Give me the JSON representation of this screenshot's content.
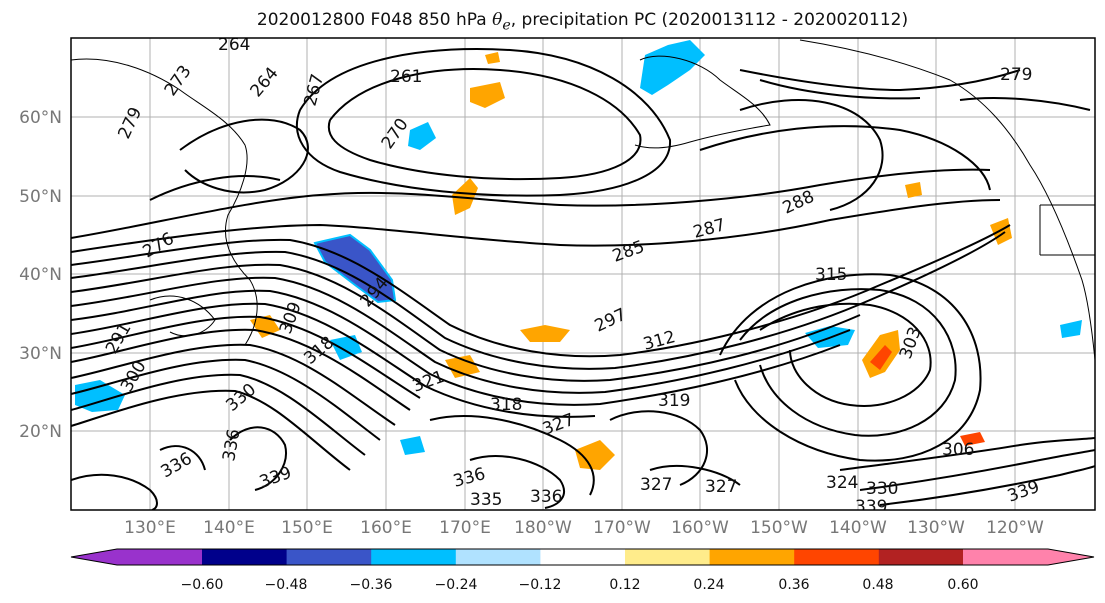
{
  "title": {
    "date": "2020012800",
    "forecast": "F048",
    "level": "850 hPa",
    "variable_symbol": "θ",
    "variable_subscript": "e",
    "rest": ", precipitation PC (2020013112 - 2020020112)"
  },
  "map": {
    "lon_labels": [
      "130°E",
      "140°E",
      "150°E",
      "160°E",
      "170°E",
      "180°W",
      "170°W",
      "160°W",
      "150°W",
      "140°W",
      "130°W",
      "120°W"
    ],
    "lat_labels": [
      "60°N",
      "50°N",
      "40°N",
      "30°N",
      "20°N"
    ],
    "contour_labels": [
      "264",
      "273",
      "279",
      "261",
      "267",
      "270",
      "264",
      "279",
      "276",
      "285",
      "287",
      "288",
      "294",
      "297",
      "312",
      "315",
      "309",
      "303",
      "318",
      "300",
      "291",
      "321",
      "327",
      "318",
      "319",
      "330",
      "336",
      "336",
      "339",
      "336",
      "335",
      "336",
      "327",
      "327",
      "324",
      "330",
      "306",
      "339",
      "339"
    ]
  },
  "colorbar": {
    "ticks": [
      "−0.60",
      "−0.48",
      "−0.36",
      "−0.24",
      "−0.12",
      "0.12",
      "0.24",
      "0.36",
      "0.48",
      "0.60"
    ],
    "colors": [
      "#9932cc",
      "#00008b",
      "#3a55c8",
      "#00bfff",
      "#b0e2ff",
      "#ffffff",
      "#ffec8b",
      "#ffa500",
      "#ff4500",
      "#b22222",
      "#ff82ab"
    ]
  }
}
